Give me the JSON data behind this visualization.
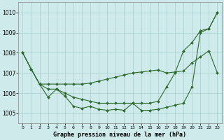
{
  "x": [
    0,
    1,
    2,
    3,
    4,
    5,
    6,
    7,
    8,
    9,
    10,
    11,
    12,
    13,
    14,
    15,
    16,
    17,
    18,
    19,
    20,
    21,
    22,
    23
  ],
  "series_low": [
    1008.0,
    1007.2,
    1006.4,
    1005.8,
    1006.2,
    1005.8,
    1005.3,
    1005.2,
    1005.3,
    1005.2,
    1005.15,
    1005.2,
    1005.15,
    1005.5,
    1005.15,
    1005.15,
    1005.2,
    1005.3,
    1005.4,
    1005.5,
    1006.3,
    1009.0,
    1009.2,
    1010.0
  ],
  "series_mid": [
    1008.0,
    1007.2,
    1006.45,
    1006.45,
    1006.45,
    1006.45,
    1006.45,
    1006.45,
    1006.5,
    1006.6,
    1006.7,
    1006.8,
    1006.9,
    1007.0,
    1007.05,
    1007.1,
    1007.15,
    1007.0,
    1007.05,
    1007.1,
    1007.5,
    1007.8,
    1008.1,
    1007.0
  ],
  "series_high": [
    1008.0,
    1007.2,
    1006.45,
    1006.2,
    1006.2,
    1006.0,
    1005.8,
    1005.7,
    1005.6,
    1005.5,
    1005.5,
    1005.5,
    1005.5,
    1005.5,
    1005.5,
    1005.5,
    1005.6,
    1006.3,
    1007.0,
    1008.1,
    1008.5,
    1009.1,
    1009.2,
    1010.0
  ],
  "line_color": "#2d6a2d",
  "bg_color": "#ceeaea",
  "grid_color": "#a8d0d0",
  "xlabel": "Graphe pression niveau de la mer (hPa)",
  "ylim": [
    1004.5,
    1010.5
  ],
  "yticks": [
    1005,
    1006,
    1007,
    1008,
    1009,
    1010
  ],
  "markersize": 2.0,
  "linewidth": 0.8
}
